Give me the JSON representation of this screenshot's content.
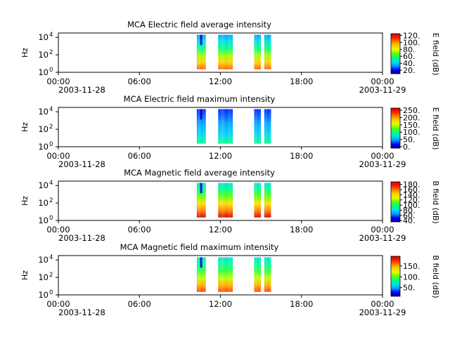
{
  "colors": {
    "colormap": [
      "#0000a0",
      "#0000ff",
      "#00a0ff",
      "#00e0e0",
      "#00ff80",
      "#60ff00",
      "#e0ff00",
      "#ffd000",
      "#ff8000",
      "#ff2000",
      "#d00000"
    ]
  },
  "chart_data": [
    {
      "type": "heatmap",
      "title": "MCA  Electric field average intensity",
      "ylabel": "Hz",
      "ytick_labels": [
        {
          "base": "10",
          "exp": "0"
        },
        {
          "base": "10",
          "exp": "2"
        },
        {
          "base": "10",
          "exp": "4"
        }
      ],
      "ylim_log10": [
        0,
        4.5
      ],
      "xlim_hours": [
        0,
        24
      ],
      "xtick_labels": [
        "00:00",
        "06:00",
        "12:00",
        "18:00",
        "00:00"
      ],
      "date_labels": [
        "2003-11-28",
        "2003-11-29"
      ],
      "colorbar_label": "E field (dB)",
      "colorbar_range": [
        10,
        125
      ],
      "colorbar_ticks": [
        "120.",
        "100.",
        "80.",
        "60.",
        "40.",
        "20."
      ],
      "colorbar_tick_values": [
        120,
        100,
        80,
        60,
        40,
        20
      ],
      "data_segments": [
        {
          "start": "10:15",
          "end": "10:55"
        },
        {
          "start": "11:50",
          "end": "12:55"
        },
        {
          "start": "14:30",
          "end": "15:00"
        },
        {
          "start": "15:15",
          "end": "15:45"
        }
      ]
    },
    {
      "type": "heatmap",
      "title": "MCA  Electric field maximum intensity",
      "ylabel": "Hz",
      "ytick_labels": [
        {
          "base": "10",
          "exp": "0"
        },
        {
          "base": "10",
          "exp": "2"
        },
        {
          "base": "10",
          "exp": "4"
        }
      ],
      "ylim_log10": [
        0,
        4.5
      ],
      "xlim_hours": [
        0,
        24
      ],
      "xtick_labels": [
        "00:00",
        "06:00",
        "12:00",
        "18:00",
        "00:00"
      ],
      "date_labels": [
        "2003-11-28",
        "2003-11-29"
      ],
      "colorbar_label": "E field (dB)",
      "colorbar_range": [
        -10,
        265
      ],
      "colorbar_ticks": [
        "250.",
        "200.",
        "150.",
        "100.",
        "50.",
        "0."
      ],
      "colorbar_tick_values": [
        250,
        200,
        150,
        100,
        50,
        0
      ],
      "data_segments": [
        {
          "start": "10:15",
          "end": "10:55"
        },
        {
          "start": "11:50",
          "end": "12:55"
        },
        {
          "start": "14:30",
          "end": "15:00"
        },
        {
          "start": "15:15",
          "end": "15:45"
        }
      ]
    },
    {
      "type": "heatmap",
      "title": "MCA  Magnetic field average intensity",
      "ylabel": "Hz",
      "ytick_labels": [
        {
          "base": "10",
          "exp": "0"
        },
        {
          "base": "10",
          "exp": "2"
        },
        {
          "base": "10",
          "exp": "4"
        }
      ],
      "ylim_log10": [
        0,
        4.5
      ],
      "xlim_hours": [
        0,
        24
      ],
      "xtick_labels": [
        "00:00",
        "06:00",
        "12:00",
        "18:00",
        "00:00"
      ],
      "date_labels": [
        "2003-11-28",
        "2003-11-29"
      ],
      "colorbar_label": "B field (dB)",
      "colorbar_range": [
        35,
        190
      ],
      "colorbar_ticks": [
        "180.",
        "160.",
        "140.",
        "120.",
        "100.",
        "80.",
        "60.",
        "40."
      ],
      "colorbar_tick_values": [
        180,
        160,
        140,
        120,
        100,
        80,
        60,
        40
      ],
      "data_segments": [
        {
          "start": "10:15",
          "end": "10:55"
        },
        {
          "start": "11:50",
          "end": "12:55"
        },
        {
          "start": "14:30",
          "end": "15:00"
        },
        {
          "start": "15:15",
          "end": "15:45"
        }
      ]
    },
    {
      "type": "heatmap",
      "title": "MCA  Magnetic field maximum intensity",
      "ylabel": "Hz",
      "ytick_labels": [
        {
          "base": "10",
          "exp": "0"
        },
        {
          "base": "10",
          "exp": "2"
        },
        {
          "base": "10",
          "exp": "4"
        }
      ],
      "ylim_log10": [
        0,
        4.5
      ],
      "xlim_hours": [
        0,
        24
      ],
      "xtick_labels": [
        "00:00",
        "06:00",
        "12:00",
        "18:00",
        "00:00"
      ],
      "date_labels": [
        "2003-11-28",
        "2003-11-29"
      ],
      "colorbar_label": "B field (dB)",
      "colorbar_range": [
        10,
        195
      ],
      "colorbar_ticks": [
        "150.",
        "100.",
        "50."
      ],
      "colorbar_tick_values": [
        150,
        100,
        50
      ],
      "data_segments": [
        {
          "start": "10:15",
          "end": "10:55"
        },
        {
          "start": "11:50",
          "end": "12:55"
        },
        {
          "start": "14:30",
          "end": "15:00"
        },
        {
          "start": "15:15",
          "end": "15:45"
        }
      ]
    }
  ]
}
